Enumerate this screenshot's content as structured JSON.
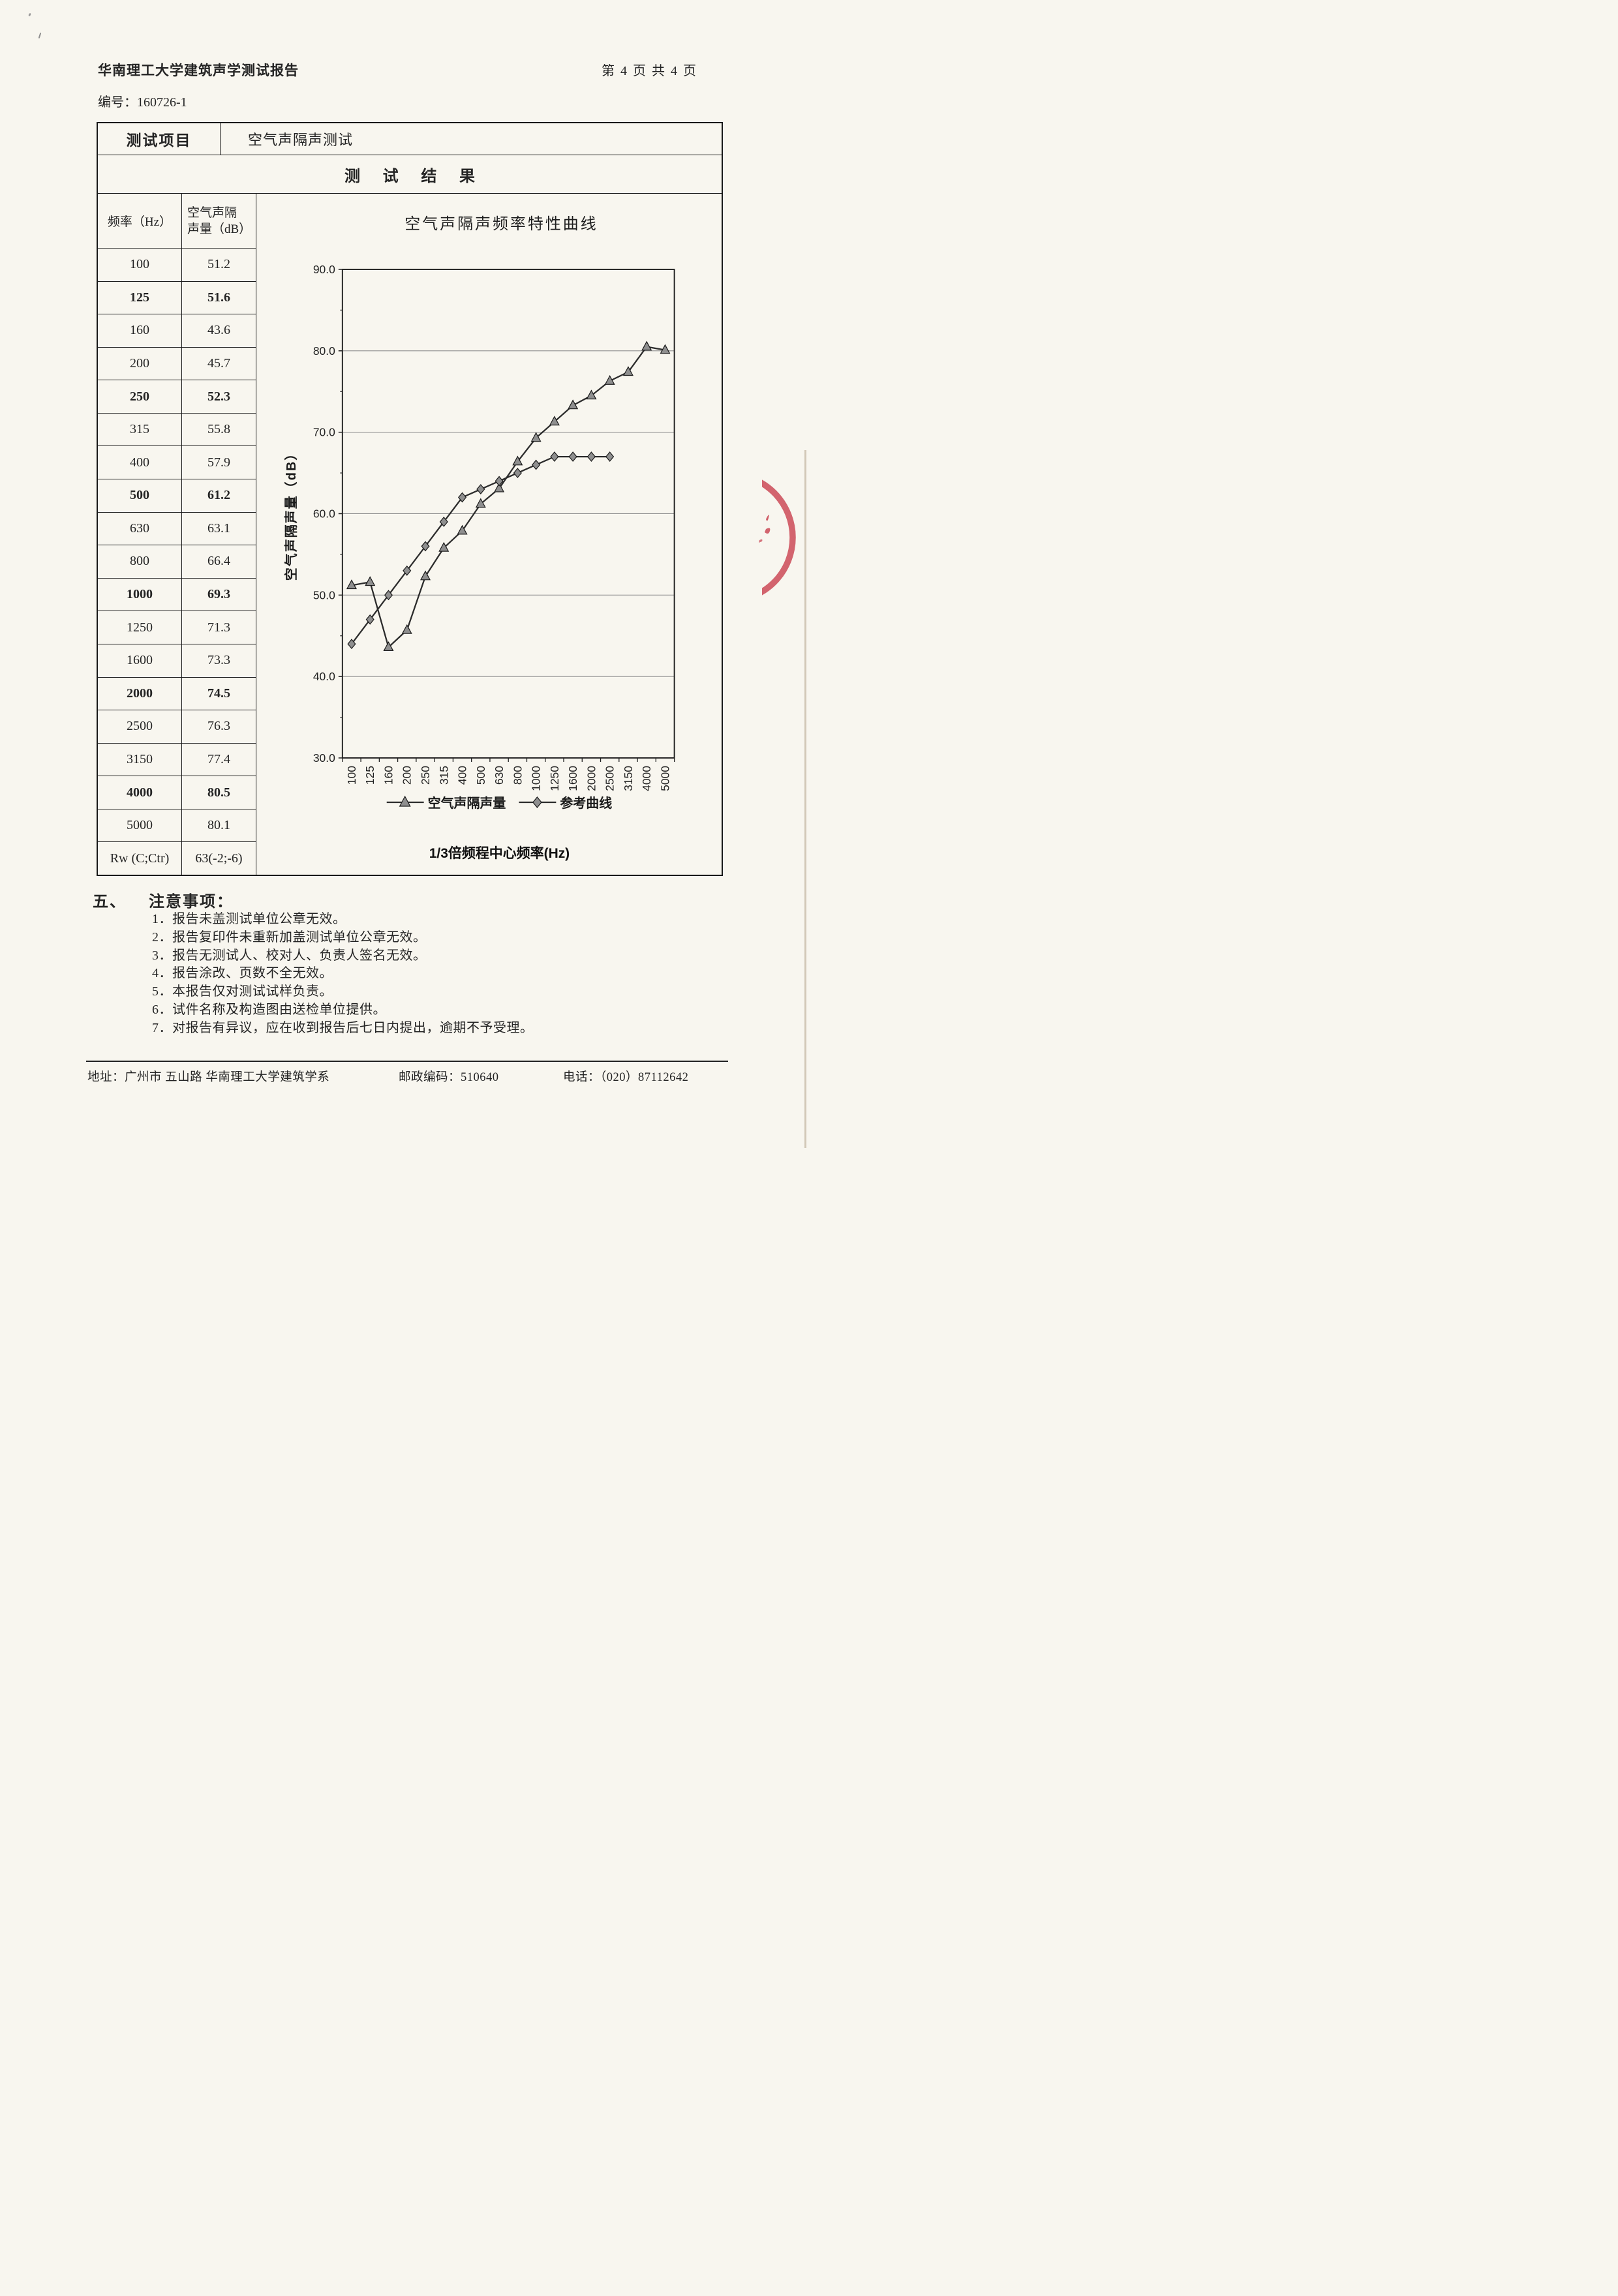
{
  "header": {
    "title": "华南理工大学建筑声学测试报告",
    "page_info": "第 4 页 共 4 页",
    "report_no": "编号：160726-1"
  },
  "results_table": {
    "test_item_label": "测试项目",
    "test_item_value": "空气声隔声测试",
    "section_title": "测 试 结 果",
    "col1_header": "频率（Hz）",
    "col2_header_line1": "空气声隔",
    "col2_header_line2": "声量（dB）",
    "rows": [
      {
        "freq": "100",
        "value": "51.2",
        "bold": false
      },
      {
        "freq": "125",
        "value": "51.6",
        "bold": true
      },
      {
        "freq": "160",
        "value": "43.6",
        "bold": false
      },
      {
        "freq": "200",
        "value": "45.7",
        "bold": false
      },
      {
        "freq": "250",
        "value": "52.3",
        "bold": true
      },
      {
        "freq": "315",
        "value": "55.8",
        "bold": false
      },
      {
        "freq": "400",
        "value": "57.9",
        "bold": false
      },
      {
        "freq": "500",
        "value": "61.2",
        "bold": true
      },
      {
        "freq": "630",
        "value": "63.1",
        "bold": false
      },
      {
        "freq": "800",
        "value": "66.4",
        "bold": false
      },
      {
        "freq": "1000",
        "value": "69.3",
        "bold": true
      },
      {
        "freq": "1250",
        "value": "71.3",
        "bold": false
      },
      {
        "freq": "1600",
        "value": "73.3",
        "bold": false
      },
      {
        "freq": "2000",
        "value": "74.5",
        "bold": true
      },
      {
        "freq": "2500",
        "value": "76.3",
        "bold": false
      },
      {
        "freq": "3150",
        "value": "77.4",
        "bold": false
      },
      {
        "freq": "4000",
        "value": "80.5",
        "bold": true
      },
      {
        "freq": "5000",
        "value": "80.1",
        "bold": false
      },
      {
        "freq": "Rw (C;Ctr)",
        "value": "63(-2;-6)",
        "bold": false
      }
    ]
  },
  "chart_data": {
    "type": "line",
    "title": "空气声隔声频率特性曲线",
    "xlabel": "1/3倍频程中心频率(Hz)",
    "ylabel": "空气声隔声量（dB）",
    "ylim": [
      30,
      90
    ],
    "ytick_step": 10,
    "ytick_labels": [
      "90.0",
      "80.0",
      "70.0",
      "60.0",
      "50.0",
      "40.0",
      "30.0"
    ],
    "grid": true,
    "legend_position": "bottom",
    "categories": [
      "100",
      "125",
      "160",
      "200",
      "250",
      "315",
      "400",
      "500",
      "630",
      "800",
      "1000",
      "1250",
      "1600",
      "2000",
      "2500",
      "3150",
      "4000",
      "5000"
    ],
    "series": [
      {
        "name": "空气声隔声量",
        "marker": "triangle",
        "values": [
          51.2,
          51.6,
          43.6,
          45.7,
          52.3,
          55.8,
          57.9,
          61.2,
          63.1,
          66.4,
          69.3,
          71.3,
          73.3,
          74.5,
          76.3,
          77.4,
          80.5,
          80.1
        ]
      },
      {
        "name": "参考曲线",
        "marker": "diamond",
        "values": [
          44,
          47,
          50,
          53,
          56,
          59,
          62,
          63,
          64,
          65,
          66,
          67,
          67,
          67,
          67
        ]
      }
    ]
  },
  "notes": {
    "section_no": "五、",
    "heading": "注意事项：",
    "items": [
      "1．报告未盖测试单位公章无效。",
      "2．报告复印件未重新加盖测试单位公章无效。",
      "3．报告无测试人、校对人、负责人签名无效。",
      "4．报告涂改、页数不全无效。",
      "5．本报告仅对测试试样负责。",
      "6．试件名称及构造图由送检单位提供。",
      "7．对报告有异议，应在收到报告后七日内提出，逾期不予受理。"
    ]
  },
  "footer": {
    "address": "地址：广州市 五山路 华南理工大学建筑学系",
    "postal_code": "邮政编码：510640",
    "phone": "电话：（020）87112642"
  },
  "stamp": {
    "color": "#c8404e"
  }
}
